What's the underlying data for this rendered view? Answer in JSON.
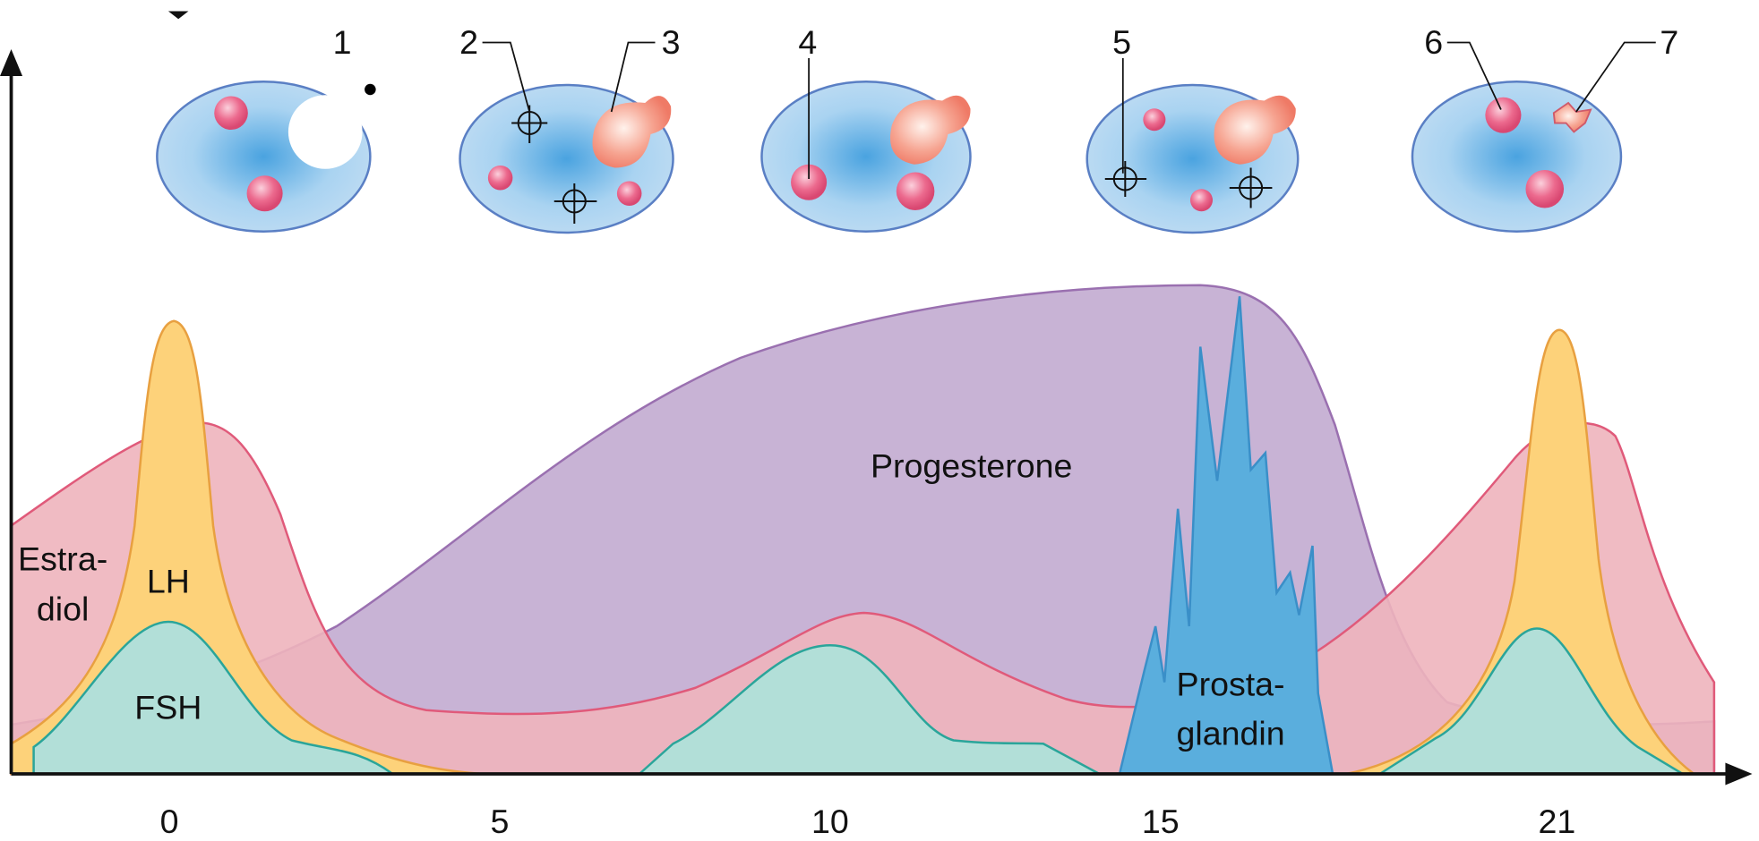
{
  "callouts": [
    "1",
    "2",
    "3",
    "4",
    "5",
    "6",
    "7"
  ],
  "labels": {
    "estradiol": [
      "Estra-",
      "diol"
    ],
    "lh": "LH",
    "fsh": "FSH",
    "progesterone": "Progesterone",
    "prostaglandin": [
      "Prosta-",
      "glandin"
    ]
  },
  "x_axis": {
    "ticks": [
      0,
      5,
      10,
      15,
      21
    ]
  }
}
